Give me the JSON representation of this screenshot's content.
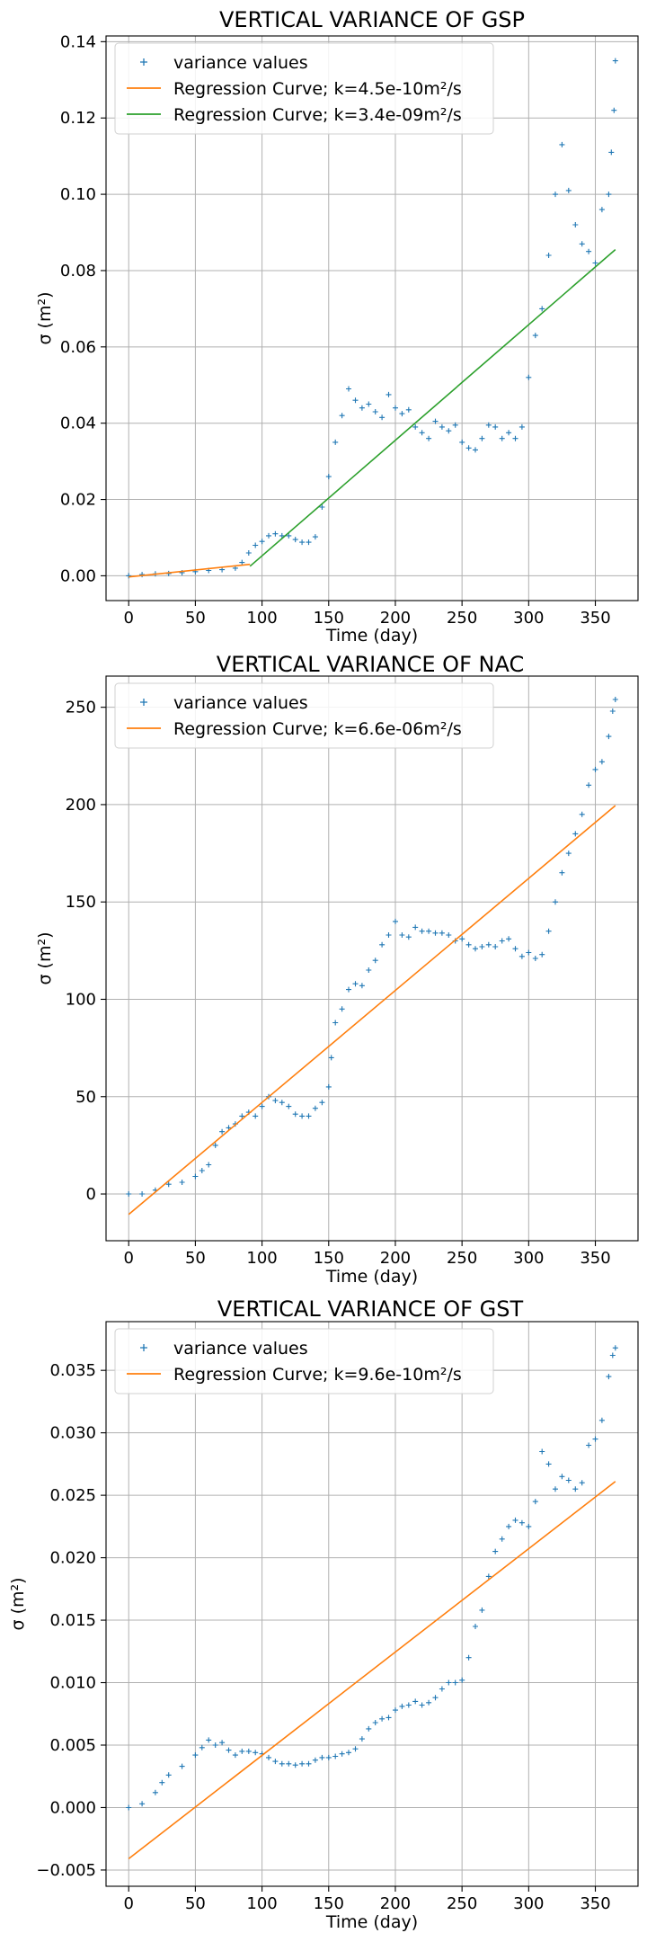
{
  "chart_data": [
    {
      "type": "scatter",
      "title": "VERTICAL VARIANCE OF GSP",
      "xlabel": "Time (day)",
      "ylabel": "σ (m²)",
      "xlim": [
        -17,
        382
      ],
      "ylim": [
        -0.0065,
        0.1415
      ],
      "xticks": [
        0,
        50,
        100,
        150,
        200,
        250,
        300,
        350
      ],
      "yticks": [
        0.0,
        0.02,
        0.04,
        0.06,
        0.08,
        0.1,
        0.12,
        0.14
      ],
      "ytick_labels": [
        "0.00",
        "0.02",
        "0.04",
        "0.06",
        "0.08",
        "0.10",
        "0.12",
        "0.14"
      ],
      "grid": true,
      "legend_position": "top-left",
      "series": [
        {
          "name": "variance values",
          "kind": "markers",
          "marker": "+",
          "color": "#1f77b4",
          "points": [
            [
              0,
              0.0
            ],
            [
              10,
              0.0003
            ],
            [
              20,
              0.0005
            ],
            [
              30,
              0.0006
            ],
            [
              40,
              0.0008
            ],
            [
              50,
              0.0011
            ],
            [
              60,
              0.0014
            ],
            [
              70,
              0.0016
            ],
            [
              80,
              0.002
            ],
            [
              85,
              0.0035
            ],
            [
              90,
              0.006
            ],
            [
              95,
              0.008
            ],
            [
              100,
              0.009
            ],
            [
              105,
              0.0105
            ],
            [
              110,
              0.011
            ],
            [
              115,
              0.0105
            ],
            [
              120,
              0.0105
            ],
            [
              125,
              0.0095
            ],
            [
              130,
              0.0088
            ],
            [
              135,
              0.0088
            ],
            [
              140,
              0.0102
            ],
            [
              145,
              0.018
            ],
            [
              150,
              0.026
            ],
            [
              155,
              0.035
            ],
            [
              160,
              0.042
            ],
            [
              165,
              0.049
            ],
            [
              170,
              0.046
            ],
            [
              175,
              0.044
            ],
            [
              180,
              0.045
            ],
            [
              185,
              0.043
            ],
            [
              190,
              0.0415
            ],
            [
              195,
              0.0475
            ],
            [
              200,
              0.044
            ],
            [
              205,
              0.0425
            ],
            [
              210,
              0.0435
            ],
            [
              215,
              0.039
            ],
            [
              220,
              0.0375
            ],
            [
              225,
              0.036
            ],
            [
              230,
              0.0405
            ],
            [
              235,
              0.039
            ],
            [
              240,
              0.038
            ],
            [
              245,
              0.0395
            ],
            [
              250,
              0.035
            ],
            [
              255,
              0.0335
            ],
            [
              260,
              0.033
            ],
            [
              265,
              0.036
            ],
            [
              270,
              0.0395
            ],
            [
              275,
              0.039
            ],
            [
              280,
              0.036
            ],
            [
              285,
              0.0375
            ],
            [
              290,
              0.036
            ],
            [
              295,
              0.039
            ],
            [
              300,
              0.052
            ],
            [
              305,
              0.063
            ],
            [
              310,
              0.07
            ],
            [
              315,
              0.084
            ],
            [
              320,
              0.1
            ],
            [
              325,
              0.113
            ],
            [
              330,
              0.101
            ],
            [
              335,
              0.092
            ],
            [
              340,
              0.087
            ],
            [
              345,
              0.085
            ],
            [
              350,
              0.082
            ],
            [
              355,
              0.096
            ],
            [
              360,
              0.1
            ],
            [
              362,
              0.111
            ],
            [
              364,
              0.122
            ],
            [
              365,
              0.135
            ]
          ]
        },
        {
          "name": "Regression Curve; k=4.5e-10m²/s",
          "kind": "line",
          "color": "#ff7f0e",
          "points": [
            [
              0,
              -0.0003
            ],
            [
              91,
              0.003
            ]
          ]
        },
        {
          "name": "Regression Curve; k=3.4e-09m²/s",
          "kind": "line",
          "color": "#2ca02c",
          "points": [
            [
              91,
              0.0025
            ],
            [
              365,
              0.0855
            ]
          ]
        }
      ]
    },
    {
      "type": "scatter",
      "title": "VERTICAL VARIANCE OF NAC",
      "xlabel": "Time (day)",
      "ylabel": "σ (m²)",
      "xlim": [
        -17,
        382
      ],
      "ylim": [
        -24,
        266
      ],
      "xticks": [
        0,
        50,
        100,
        150,
        200,
        250,
        300,
        350
      ],
      "yticks": [
        0,
        50,
        100,
        150,
        200,
        250
      ],
      "ytick_labels": [
        "0",
        "50",
        "100",
        "150",
        "200",
        "250"
      ],
      "grid": true,
      "legend_position": "top-left",
      "series": [
        {
          "name": "variance values",
          "kind": "markers",
          "marker": "+",
          "color": "#1f77b4",
          "points": [
            [
              0,
              0
            ],
            [
              10,
              0
            ],
            [
              20,
              2
            ],
            [
              30,
              5
            ],
            [
              40,
              6
            ],
            [
              50,
              9
            ],
            [
              55,
              12
            ],
            [
              60,
              15
            ],
            [
              65,
              25
            ],
            [
              70,
              32
            ],
            [
              75,
              34
            ],
            [
              80,
              36
            ],
            [
              85,
              40
            ],
            [
              90,
              42
            ],
            [
              95,
              40
            ],
            [
              100,
              45
            ],
            [
              105,
              50
            ],
            [
              110,
              48
            ],
            [
              115,
              47
            ],
            [
              120,
              45
            ],
            [
              125,
              41
            ],
            [
              130,
              40
            ],
            [
              135,
              40
            ],
            [
              140,
              44
            ],
            [
              145,
              47
            ],
            [
              150,
              55
            ],
            [
              152,
              70
            ],
            [
              155,
              88
            ],
            [
              160,
              95
            ],
            [
              165,
              105
            ],
            [
              170,
              108
            ],
            [
              175,
              107
            ],
            [
              180,
              115
            ],
            [
              185,
              120
            ],
            [
              190,
              128
            ],
            [
              195,
              133
            ],
            [
              200,
              140
            ],
            [
              205,
              133
            ],
            [
              210,
              132
            ],
            [
              215,
              137
            ],
            [
              220,
              135
            ],
            [
              225,
              135
            ],
            [
              230,
              134
            ],
            [
              235,
              134
            ],
            [
              240,
              133
            ],
            [
              245,
              130
            ],
            [
              250,
              131
            ],
            [
              255,
              128
            ],
            [
              260,
              126
            ],
            [
              265,
              127
            ],
            [
              270,
              128
            ],
            [
              275,
              127
            ],
            [
              280,
              130
            ],
            [
              285,
              131
            ],
            [
              290,
              126
            ],
            [
              295,
              122
            ],
            [
              300,
              124
            ],
            [
              305,
              121
            ],
            [
              310,
              123
            ],
            [
              315,
              135
            ],
            [
              320,
              150
            ],
            [
              325,
              165
            ],
            [
              330,
              175
            ],
            [
              335,
              185
            ],
            [
              340,
              195
            ],
            [
              345,
              210
            ],
            [
              350,
              218
            ],
            [
              355,
              222
            ],
            [
              360,
              235
            ],
            [
              363,
              248
            ],
            [
              365,
              254
            ]
          ]
        },
        {
          "name": "Regression Curve; k=6.6e-06m²/s",
          "kind": "line",
          "color": "#ff7f0e",
          "points": [
            [
              0,
              -10.5
            ],
            [
              365,
              199.5
            ]
          ]
        }
      ]
    },
    {
      "type": "scatter",
      "title": "VERTICAL VARIANCE OF GST",
      "xlabel": "Time (day)",
      "ylabel": "σ (m²)",
      "xlim": [
        -17,
        382
      ],
      "ylim": [
        -0.0063,
        0.0389
      ],
      "xticks": [
        0,
        50,
        100,
        150,
        200,
        250,
        300,
        350
      ],
      "yticks": [
        -0.005,
        0.0,
        0.005,
        0.01,
        0.015,
        0.02,
        0.025,
        0.03,
        0.035
      ],
      "ytick_labels": [
        "−0.005",
        "0.000",
        "0.005",
        "0.010",
        "0.015",
        "0.020",
        "0.025",
        "0.030",
        "0.035"
      ],
      "grid": true,
      "legend_position": "top-left",
      "series": [
        {
          "name": "variance values",
          "kind": "markers",
          "marker": "+",
          "color": "#1f77b4",
          "points": [
            [
              0,
              0.0
            ],
            [
              10,
              0.0003
            ],
            [
              20,
              0.0012
            ],
            [
              25,
              0.002
            ],
            [
              30,
              0.0026
            ],
            [
              40,
              0.0033
            ],
            [
              50,
              0.0042
            ],
            [
              55,
              0.0048
            ],
            [
              60,
              0.0054
            ],
            [
              65,
              0.005
            ],
            [
              70,
              0.0052
            ],
            [
              75,
              0.0046
            ],
            [
              80,
              0.0042
            ],
            [
              85,
              0.0045
            ],
            [
              90,
              0.0045
            ],
            [
              95,
              0.0044
            ],
            [
              100,
              0.0043
            ],
            [
              105,
              0.004
            ],
            [
              110,
              0.0037
            ],
            [
              115,
              0.0035
            ],
            [
              120,
              0.0035
            ],
            [
              125,
              0.0034
            ],
            [
              130,
              0.0035
            ],
            [
              135,
              0.0035
            ],
            [
              140,
              0.0038
            ],
            [
              145,
              0.004
            ],
            [
              150,
              0.004
            ],
            [
              155,
              0.0041
            ],
            [
              160,
              0.0043
            ],
            [
              165,
              0.0044
            ],
            [
              170,
              0.0047
            ],
            [
              175,
              0.0055
            ],
            [
              180,
              0.0063
            ],
            [
              185,
              0.0068
            ],
            [
              190,
              0.0071
            ],
            [
              195,
              0.0072
            ],
            [
              200,
              0.0078
            ],
            [
              205,
              0.0081
            ],
            [
              210,
              0.0082
            ],
            [
              215,
              0.0085
            ],
            [
              220,
              0.0082
            ],
            [
              225,
              0.0084
            ],
            [
              230,
              0.0088
            ],
            [
              235,
              0.0095
            ],
            [
              240,
              0.01
            ],
            [
              245,
              0.01
            ],
            [
              250,
              0.0102
            ],
            [
              255,
              0.012
            ],
            [
              260,
              0.0145
            ],
            [
              265,
              0.0158
            ],
            [
              270,
              0.0185
            ],
            [
              275,
              0.0205
            ],
            [
              280,
              0.0215
            ],
            [
              285,
              0.0225
            ],
            [
              290,
              0.023
            ],
            [
              295,
              0.0228
            ],
            [
              300,
              0.0225
            ],
            [
              305,
              0.0245
            ],
            [
              310,
              0.0285
            ],
            [
              315,
              0.0275
            ],
            [
              320,
              0.0255
            ],
            [
              325,
              0.0265
            ],
            [
              330,
              0.0262
            ],
            [
              335,
              0.0255
            ],
            [
              340,
              0.026
            ],
            [
              345,
              0.029
            ],
            [
              350,
              0.0295
            ],
            [
              355,
              0.031
            ],
            [
              360,
              0.0345
            ],
            [
              363,
              0.0362
            ],
            [
              365,
              0.0368
            ]
          ]
        },
        {
          "name": "Regression Curve; k=9.6e-10m²/s",
          "kind": "line",
          "color": "#ff7f0e",
          "points": [
            [
              0,
              -0.0041
            ],
            [
              365,
              0.0261
            ]
          ]
        }
      ]
    }
  ]
}
